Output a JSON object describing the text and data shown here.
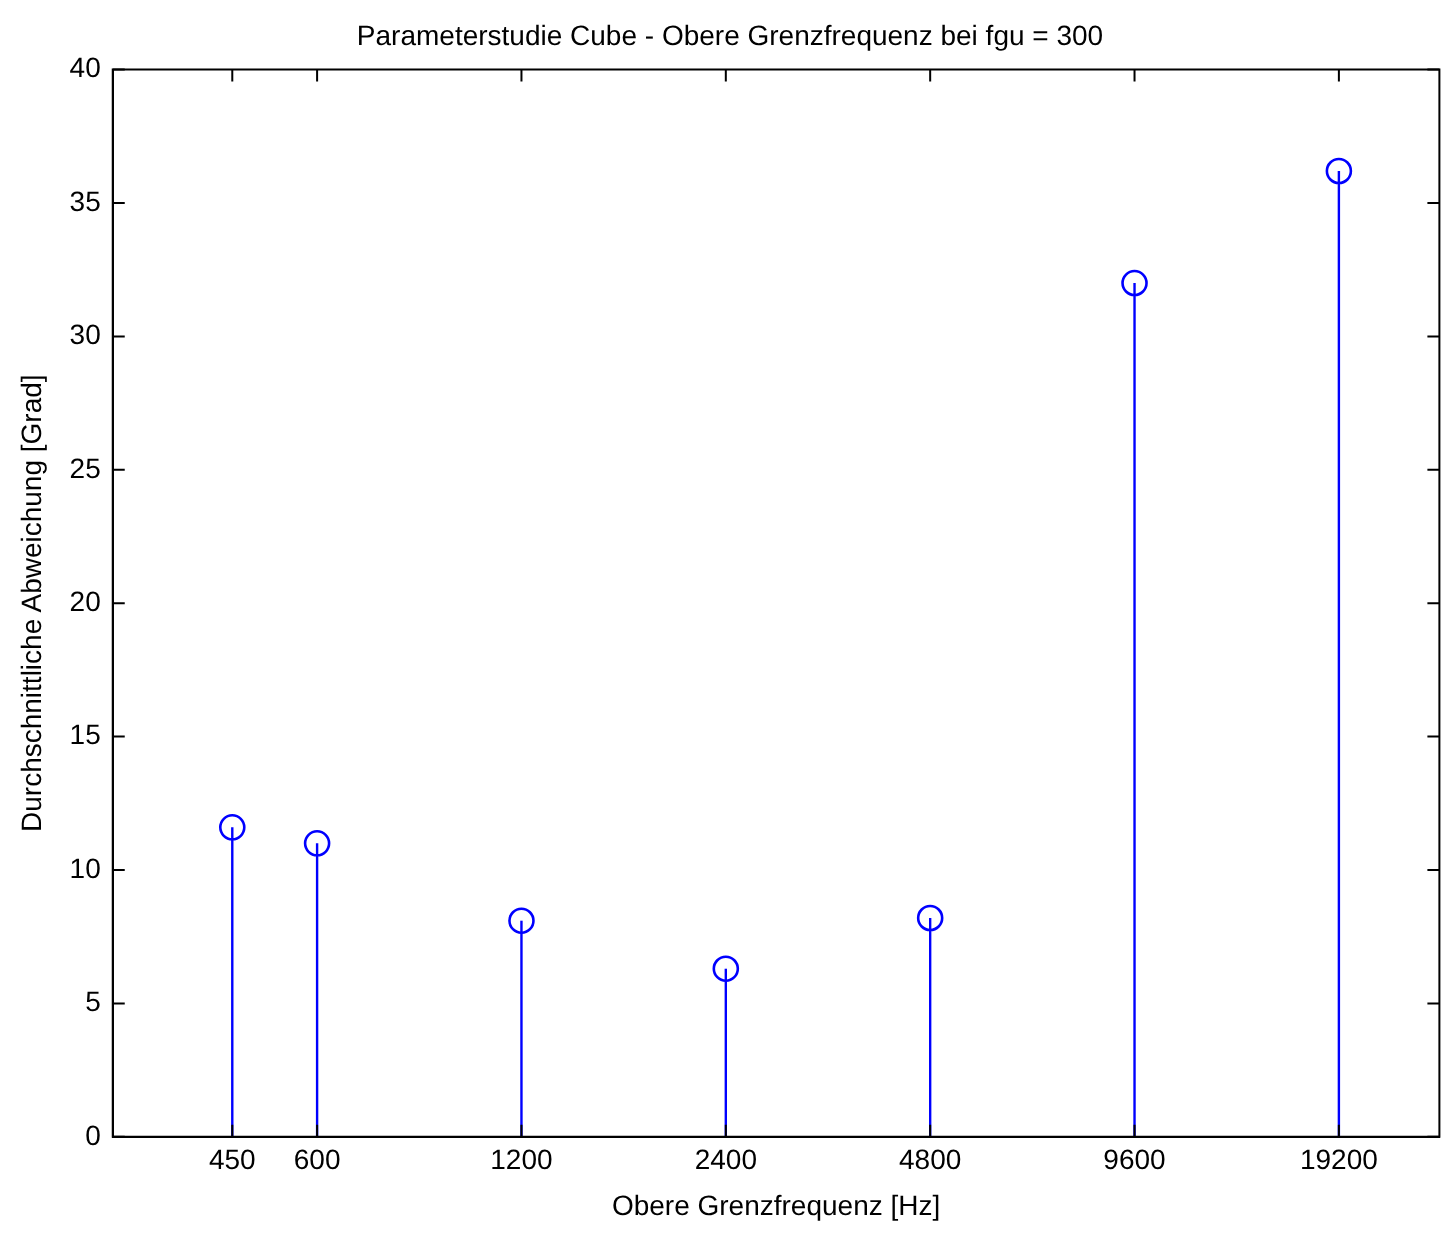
{
  "chart_data": {
    "type": "lollipop",
    "title": "Parameterstudie Cube - Obere Grenzfrequenz bei fgu = 300",
    "xlabel": "Obere Grenzfrequenz [Hz]",
    "ylabel": "Durchschnittliche Abweichung [Grad]",
    "x": [
      450,
      600,
      1200,
      2400,
      4800,
      9600,
      19200
    ],
    "values": [
      11.6,
      11.0,
      8.1,
      6.3,
      8.2,
      32.0,
      36.2
    ],
    "color": "#0000ff",
    "marker": "circle",
    "log": "x",
    "legend": false,
    "xlim": [
      300,
      27000
    ],
    "xticks": [
      450,
      600,
      1200,
      2400,
      4800,
      9600,
      19200
    ],
    "ylim": [
      0,
      40
    ],
    "yticks": [
      0,
      5,
      10,
      15,
      20,
      25,
      30,
      35,
      40
    ]
  }
}
